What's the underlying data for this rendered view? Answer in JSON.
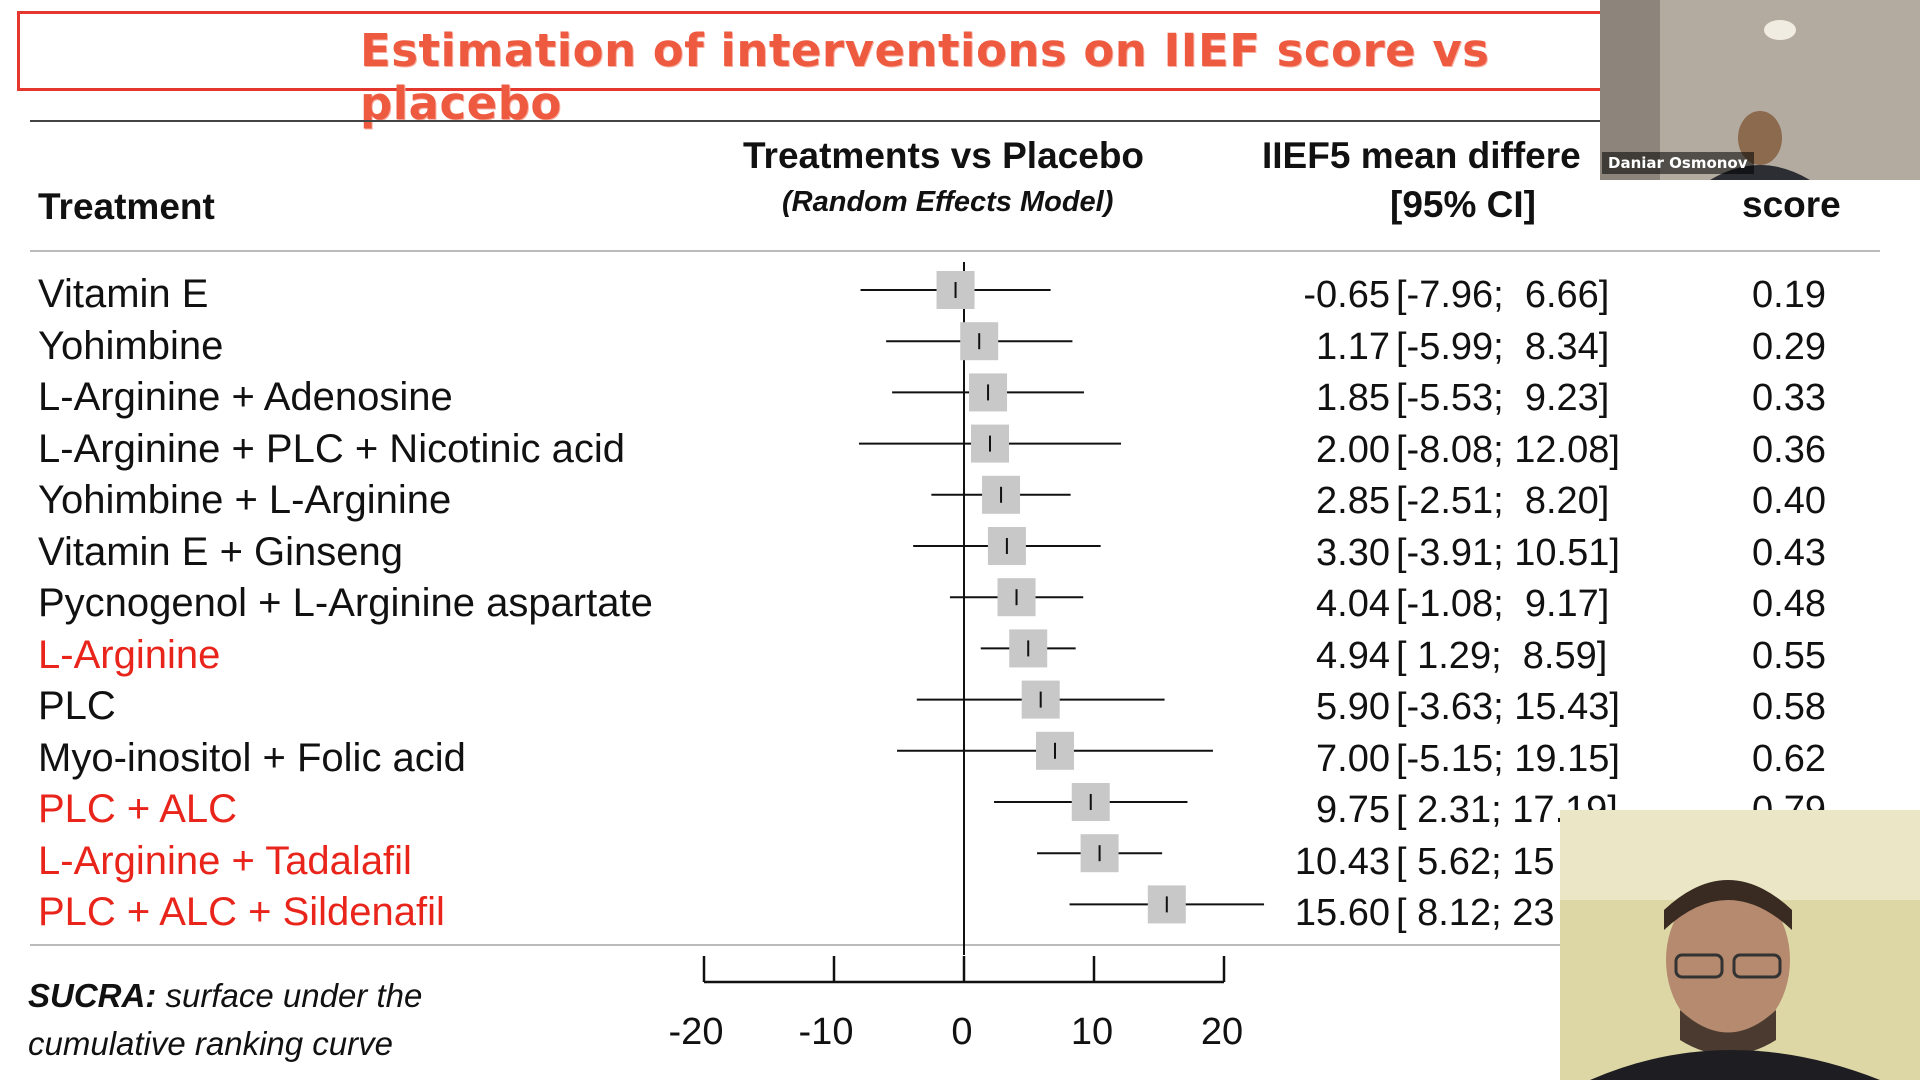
{
  "title": "Estimation of interventions on IIEF score vs placebo",
  "headers": {
    "treatment": "Treatment",
    "treatments_vs_placebo": "Treatments vs Placebo",
    "model": "(Random Effects Model)",
    "iief_mean": "IIEF5 mean differe",
    "ci": "[95% CI]",
    "score": "score"
  },
  "rows": [
    {
      "label": "Vitamin E",
      "mean": "-0.65",
      "ci": "[-7.96;  6.66]",
      "score": "0.19",
      "highlight": false
    },
    {
      "label": "Yohimbine",
      "mean": "1.17",
      "ci": "[-5.99;  8.34]",
      "score": "0.29",
      "highlight": false
    },
    {
      "label": "L-Arginine + Adenosine",
      "mean": "1.85",
      "ci": "[-5.53;  9.23]",
      "score": "0.33",
      "highlight": false
    },
    {
      "label": "L-Arginine + PLC + Nicotinic acid",
      "mean": "2.00",
      "ci": "[-8.08; 12.08]",
      "score": "0.36",
      "highlight": false
    },
    {
      "label": "Yohimbine + L-Arginine",
      "mean": "2.85",
      "ci": "[-2.51;  8.20]",
      "score": "0.40",
      "highlight": false
    },
    {
      "label": "Vitamin E + Ginseng",
      "mean": "3.30",
      "ci": "[-3.91; 10.51]",
      "score": "0.43",
      "highlight": false
    },
    {
      "label": "Pycnogenol + L-Arginine aspartate",
      "mean": "4.04",
      "ci": "[-1.08;  9.17]",
      "score": "0.48",
      "highlight": false
    },
    {
      "label": "L-Arginine",
      "mean": "4.94",
      "ci": "[ 1.29;  8.59]",
      "score": "0.55",
      "highlight": true
    },
    {
      "label": "PLC",
      "mean": "5.90",
      "ci": "[-3.63; 15.43]",
      "score": "0.58",
      "highlight": false
    },
    {
      "label": "Myo-inositol + Folic acid",
      "mean": "7.00",
      "ci": "[-5.15; 19.15]",
      "score": "0.62",
      "highlight": false
    },
    {
      "label": "PLC + ALC",
      "mean": "9.75",
      "ci": "[ 2.31; 17.19]",
      "score": "0.79",
      "highlight": true
    },
    {
      "label": "L-Arginine + Tadalafil",
      "mean": "10.43",
      "ci": "[ 5.62; 15",
      "score": "",
      "highlight": true
    },
    {
      "label": "PLC + ALC + Sildenafil",
      "mean": "15.60",
      "ci": "[ 8.12; 23",
      "score": "",
      "highlight": true
    }
  ],
  "chart_data": {
    "type": "forest",
    "xlim": [
      -20,
      20
    ],
    "xticks": [
      "-20",
      "-10",
      "0",
      "10",
      "20"
    ],
    "reference_line": 0,
    "series": [
      {
        "category": "Vitamin E",
        "estimate": -0.65,
        "lower": -7.96,
        "upper": 6.66
      },
      {
        "category": "Yohimbine",
        "estimate": 1.17,
        "lower": -5.99,
        "upper": 8.34
      },
      {
        "category": "L-Arginine + Adenosine",
        "estimate": 1.85,
        "lower": -5.53,
        "upper": 9.23
      },
      {
        "category": "L-Arginine + PLC + Nicotinic acid",
        "estimate": 2.0,
        "lower": -8.08,
        "upper": 12.08
      },
      {
        "category": "Yohimbine + L-Arginine",
        "estimate": 2.85,
        "lower": -2.51,
        "upper": 8.2
      },
      {
        "category": "Vitamin E + Ginseng",
        "estimate": 3.3,
        "lower": -3.91,
        "upper": 10.51
      },
      {
        "category": "Pycnogenol + L-Arginine aspartate",
        "estimate": 4.04,
        "lower": -1.08,
        "upper": 9.17
      },
      {
        "category": "L-Arginine",
        "estimate": 4.94,
        "lower": 1.29,
        "upper": 8.59
      },
      {
        "category": "PLC",
        "estimate": 5.9,
        "lower": -3.63,
        "upper": 15.43
      },
      {
        "category": "Myo-inositol + Folic acid",
        "estimate": 7.0,
        "lower": -5.15,
        "upper": 19.15
      },
      {
        "category": "PLC + ALC",
        "estimate": 9.75,
        "lower": 2.31,
        "upper": 17.19
      },
      {
        "category": "L-Arginine + Tadalafil",
        "estimate": 10.43,
        "lower": 5.62,
        "upper": 15.24
      },
      {
        "category": "PLC + ALC + Sildenafil",
        "estimate": 15.6,
        "lower": 8.12,
        "upper": 23.08
      }
    ]
  },
  "footnote": {
    "term": "SUCRA:",
    "text_line1": " surface under the",
    "text_line2": "cumulative ranking curve"
  },
  "participants": [
    {
      "name": "Daniar Osmonov"
    }
  ],
  "colors": {
    "highlight": "#e8241b",
    "title": "#ee5a40",
    "box": "#c8c8c8"
  }
}
